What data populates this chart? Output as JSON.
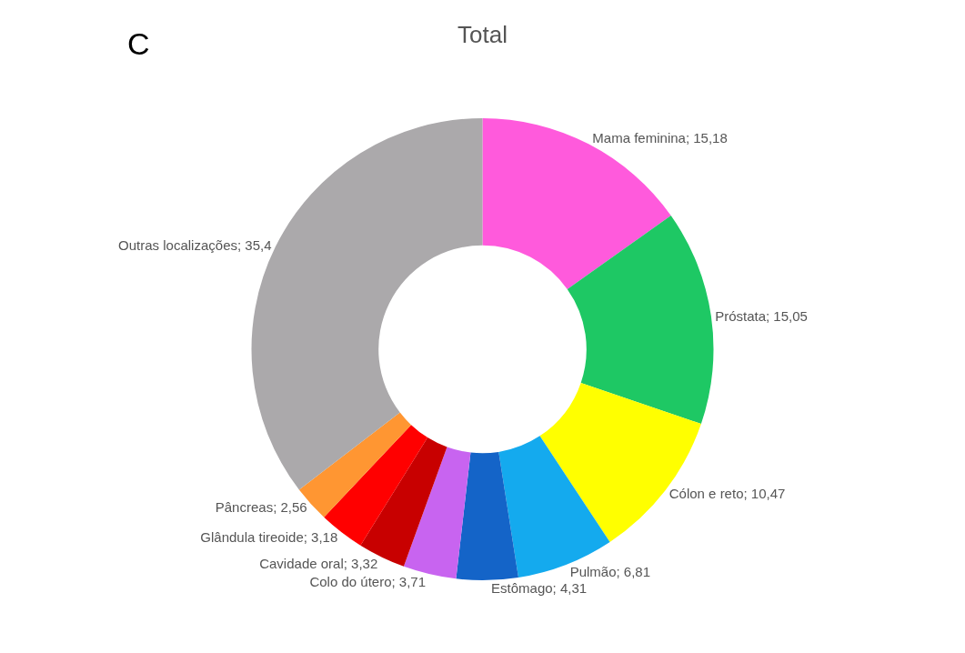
{
  "chart_data": {
    "type": "donut",
    "title": "Total",
    "categories": [
      "Mama feminina",
      "Próstata",
      "Cólon e reto",
      "Pulmão",
      "Estômago",
      "Colo do útero",
      "Cavidade oral",
      "Glândula tireoide",
      "Pâncreas",
      "Outras localizações"
    ],
    "values": [
      15.18,
      15.05,
      10.47,
      6.81,
      4.31,
      3.71,
      3.32,
      3.18,
      2.56,
      35.4
    ],
    "value_labels": [
      "15,18",
      "15,05",
      "10,47",
      "6,81",
      "4,31",
      "3,71",
      "3,32",
      "3,18",
      "2,56",
      "35,4"
    ],
    "colors": [
      "#ff5adc",
      "#1ec864",
      "#ffff00",
      "#14aaee",
      "#1464c8",
      "#c864f0",
      "#c80000",
      "#ff0000",
      "#ff9632",
      "#aba9ab"
    ],
    "annotations": [
      "C"
    ],
    "legend": false
  }
}
